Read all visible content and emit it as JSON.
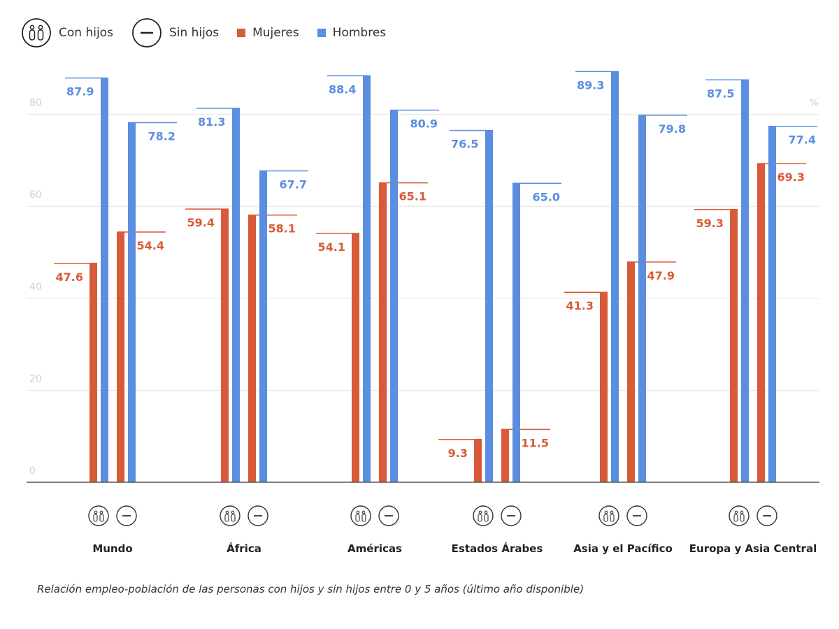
{
  "legend": {
    "with_children": "Con hijos",
    "without_children": "Sin hijos",
    "women": "Mujeres",
    "men": "Hombres"
  },
  "colors": {
    "women": "#d95a38",
    "men": "#5b8ee0",
    "grid": "#e2e2e2",
    "axis": "#555555",
    "tick": "#cfcfcf"
  },
  "chart_data": {
    "type": "bar",
    "unit": "%",
    "ylim": [
      0,
      90
    ],
    "yticks": [
      0,
      20,
      40,
      60,
      80
    ],
    "categories": [
      "Mundo",
      "África",
      "Américas",
      "Estados Árabes",
      "Asia y el Pacífico",
      "Europa y Asia Central"
    ],
    "groups": [
      "Con hijos",
      "Sin hijos"
    ],
    "series": [
      {
        "name": "Mujeres con hijos",
        "values": [
          47.6,
          59.4,
          54.1,
          9.3,
          41.3,
          59.3
        ]
      },
      {
        "name": "Hombres con hijos",
        "values": [
          87.9,
          81.3,
          88.4,
          76.5,
          89.3,
          87.5
        ]
      },
      {
        "name": "Mujeres sin hijos",
        "values": [
          54.4,
          58.1,
          65.1,
          11.5,
          47.9,
          69.3
        ]
      },
      {
        "name": "Hombres sin hijos",
        "values": [
          78.2,
          67.7,
          80.9,
          65.0,
          79.8,
          77.4
        ]
      }
    ],
    "caption": "Relación empleo-población de las personas con hijos y sin hijos entre 0 y 5 años (último año disponible)"
  }
}
